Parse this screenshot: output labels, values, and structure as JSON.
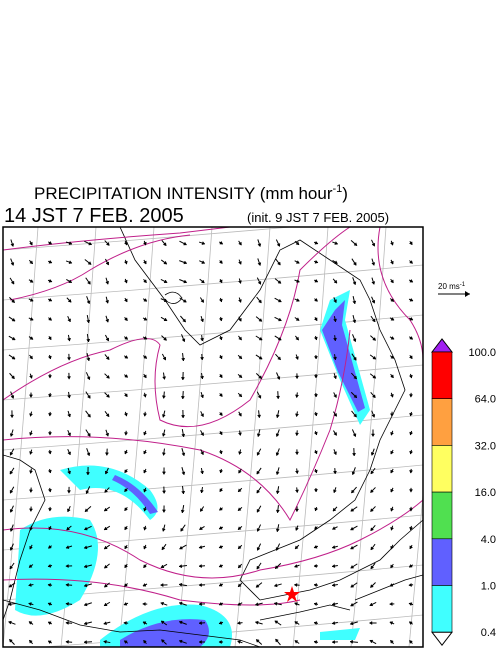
{
  "header": {
    "title": "PRECIPITATION INTENSITY (mm hour",
    "title_exponent": "-1",
    "title_close": ")",
    "time": "14 JST 7 FEB. 2005",
    "init": "(init. 9 JST 7 FEB. 2005)"
  },
  "wind_scale": {
    "label": "20 ms",
    "exponent": "-1"
  },
  "colorbar": {
    "over_color": "#a020f0",
    "under_color": "#ffffff",
    "levels": [
      "100.0",
      "64.0",
      "32.0",
      "16.0",
      "4.0",
      "1.0",
      "0.4"
    ],
    "colors": [
      "#ff0000",
      "#ffa040",
      "#ffff60",
      "#50e050",
      "#6060ff",
      "#40ffff"
    ]
  }
}
